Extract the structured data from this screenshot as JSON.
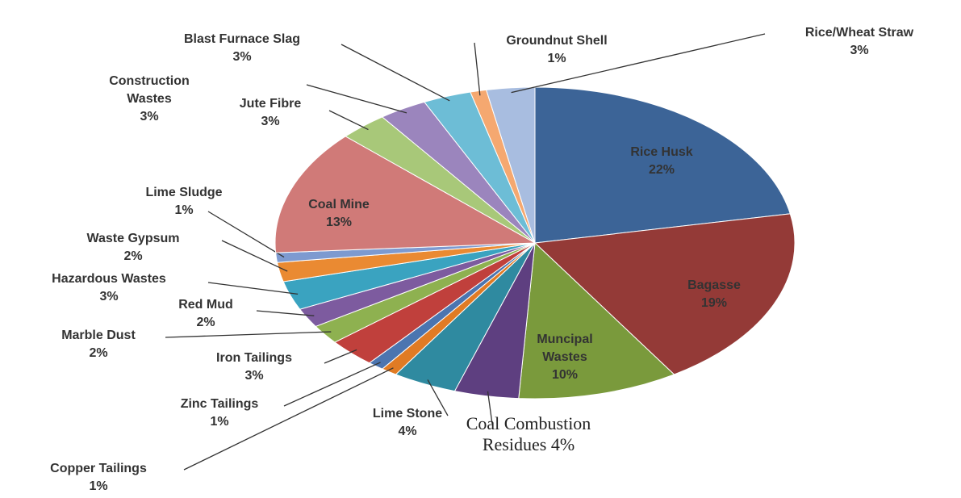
{
  "chart_data": {
    "type": "pie",
    "categories": [
      "Rice Husk",
      "Bagasse",
      "Muncipal Wastes",
      "Coal Combustion Residues",
      "Lime Stone",
      "Copper Tailings",
      "Zinc Tailings",
      "Iron Tailings",
      "Marble Dust",
      "Red Mud",
      "Hazardous Wastes",
      "Waste Gypsum",
      "Lime Sludge",
      "Coal Mine",
      "Jute Fibre",
      "Construction Wastes",
      "Blast Furnace Slag",
      "Groundnut Shell",
      "Rice/Wheat Straw"
    ],
    "values": [
      22,
      19,
      10,
      4,
      4,
      1,
      1,
      3,
      2,
      2,
      3,
      2,
      1,
      13,
      3,
      3,
      3,
      1,
      3
    ],
    "value_labels": [
      "22%",
      "19%",
      "10%",
      "4%",
      "4%",
      "1%",
      "1%",
      "3%",
      "2%",
      "2%",
      "3%",
      "2%",
      "1%",
      "13%",
      "3%",
      "3%",
      "3%",
      "1%",
      "3%"
    ],
    "colors": [
      "#3c6497",
      "#943a37",
      "#7a9a3c",
      "#5e3f80",
      "#2f8aa0",
      "#e07b24",
      "#4b75b0",
      "#c0403c",
      "#8eb150",
      "#7d5b9f",
      "#3aa3c0",
      "#ea8a32",
      "#7d9ad0",
      "#d07a78",
      "#a8c879",
      "#9b85bd",
      "#6dbdd6",
      "#f5a870",
      "#a8bde0"
    ]
  }
}
